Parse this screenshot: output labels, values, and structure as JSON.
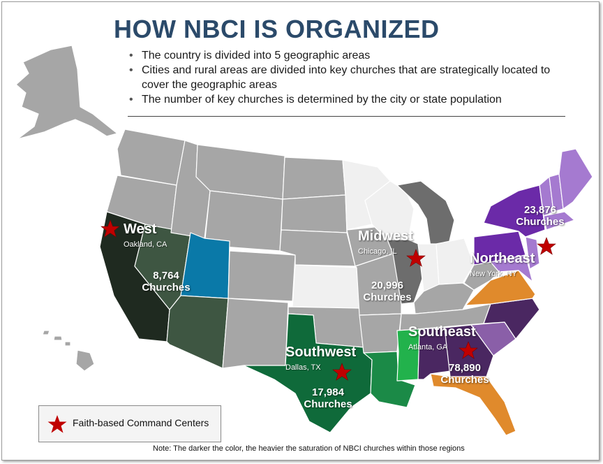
{
  "title": "HOW NBCI IS ORGANIZED",
  "bullets": [
    "The country is divided into 5 geographic areas",
    "Cities and rural areas are divided into key churches that are strategically located to cover the geographic areas",
    "The number of key churches is determined by the city or state population"
  ],
  "regions": {
    "west": {
      "name": "West",
      "city": "Oakland, CA",
      "count_number": "8,764",
      "count_word": "Churches"
    },
    "midwest": {
      "name": "Midwest",
      "city": "Chicago, IL",
      "count_number": "20,996",
      "count_word": "Churches"
    },
    "northeast": {
      "name": "Northeast",
      "city": "New York, NY",
      "count_number": "23,876",
      "count_word": "Churches"
    },
    "southwest": {
      "name": "Southwest",
      "city": "Dallas, TX",
      "count_number": "17,984",
      "count_word": "Churches"
    },
    "southeast": {
      "name": "Southeast",
      "city": "Atlanta, GA",
      "count_number": "78,890",
      "count_word": "Churches"
    }
  },
  "legend": {
    "label": "Faith-based Command Centers",
    "marker_icon": "star-icon",
    "marker_color": "#c00000"
  },
  "note": "Note:  The darker the color, the heavier the saturation of NBCI churches within those regions",
  "colors": {
    "title": "#2b4a6a",
    "neutral_state": "#a6a6a6",
    "light_state": "#f0f0f0",
    "west_dark": "#1f2a20",
    "west_mid": "#3e5642",
    "utah_blue": "#0a79a8",
    "southwest_dark": "#0f6a3a",
    "southwest_mid": "#1b8a47",
    "southwest_light": "#22b24c",
    "southeast_dark": "#4a2761",
    "southeast_mid": "#8a5fa8",
    "northeast_dark": "#6b2aa8",
    "northeast_light": "#a57ad0",
    "orange": "#e08a2c",
    "midwest_dark": "#6d6d6d",
    "star": "#c00000"
  }
}
